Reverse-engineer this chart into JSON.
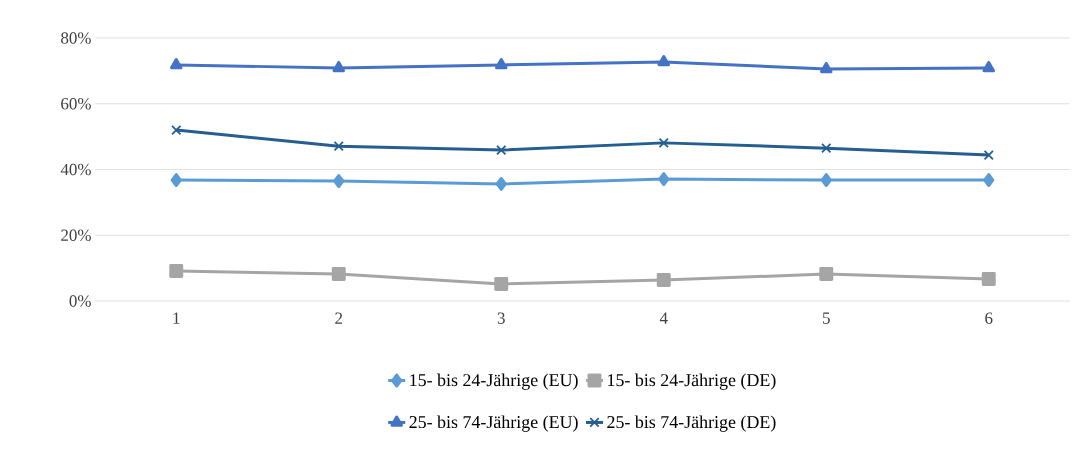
{
  "chart_data": {
    "type": "line",
    "categories": [
      "1",
      "2",
      "3",
      "4",
      "5",
      "6"
    ],
    "series": [
      {
        "name": "15- bis 24-Jährige (EU)",
        "color": "#5b9bd5",
        "marker": "diamond",
        "values": [
          36.8,
          36.5,
          35.6,
          37.1,
          36.8,
          36.8
        ]
      },
      {
        "name": "15- bis 24-Jährige (DE)",
        "color": "#a5a5a5",
        "marker": "square",
        "values": [
          9.1,
          8.2,
          5.2,
          6.4,
          8.2,
          6.7
        ]
      },
      {
        "name": "25- bis 74-Jährige (EU)",
        "color": "#4472c4",
        "marker": "triangle",
        "values": [
          71.8,
          70.9,
          71.8,
          72.7,
          70.6,
          70.9
        ]
      },
      {
        "name": "25- bis 74-Jährige (DE)",
        "color": "#255e91",
        "marker": "cross",
        "values": [
          52.0,
          47.1,
          45.9,
          48.1,
          46.5,
          44.4
        ]
      }
    ],
    "ylim": [
      0,
      80
    ],
    "yticks": [
      {
        "value": 0,
        "label": "0%"
      },
      {
        "value": 20,
        "label": "20%"
      },
      {
        "value": 40,
        "label": "40%"
      },
      {
        "value": 60,
        "label": "60%"
      },
      {
        "value": 80,
        "label": "80%"
      }
    ],
    "grid": "y",
    "legend": "bottom",
    "line_style": "solid"
  }
}
